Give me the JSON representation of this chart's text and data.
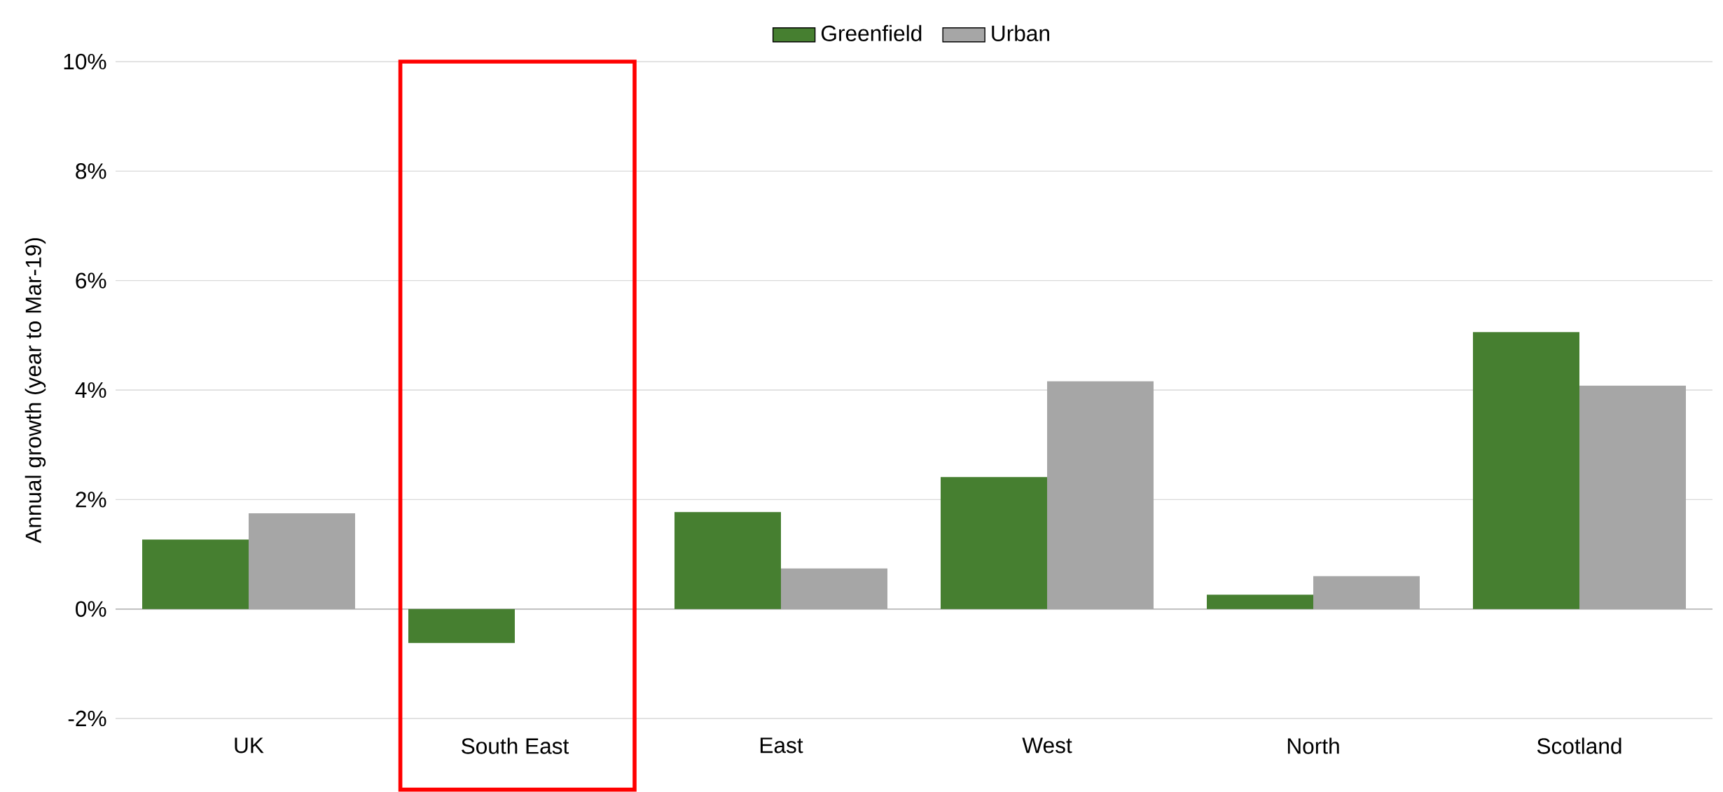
{
  "chart_data": {
    "type": "bar",
    "ylabel": "Annual growth (year to Mar-19)",
    "categories": [
      "UK",
      "South East",
      "East",
      "West",
      "North",
      "Scotland"
    ],
    "series": [
      {
        "name": "Greenfield",
        "color": "#467f30",
        "values": [
          1.27,
          -0.62,
          1.77,
          2.41,
          0.26,
          5.06
        ]
      },
      {
        "name": "Urban",
        "color": "#a6a6a6",
        "values": [
          1.75,
          null,
          0.74,
          4.16,
          0.6,
          4.08
        ]
      }
    ],
    "ylim": [
      -2,
      10
    ],
    "yticks": [
      {
        "value": -2,
        "label": "-2%"
      },
      {
        "value": 0,
        "label": "0%"
      },
      {
        "value": 2,
        "label": "2%"
      },
      {
        "value": 4,
        "label": "4%"
      },
      {
        "value": 6,
        "label": "6%"
      },
      {
        "value": 8,
        "label": "8%"
      },
      {
        "value": 10,
        "label": "10%"
      }
    ],
    "grid": "y",
    "legend": "top"
  }
}
